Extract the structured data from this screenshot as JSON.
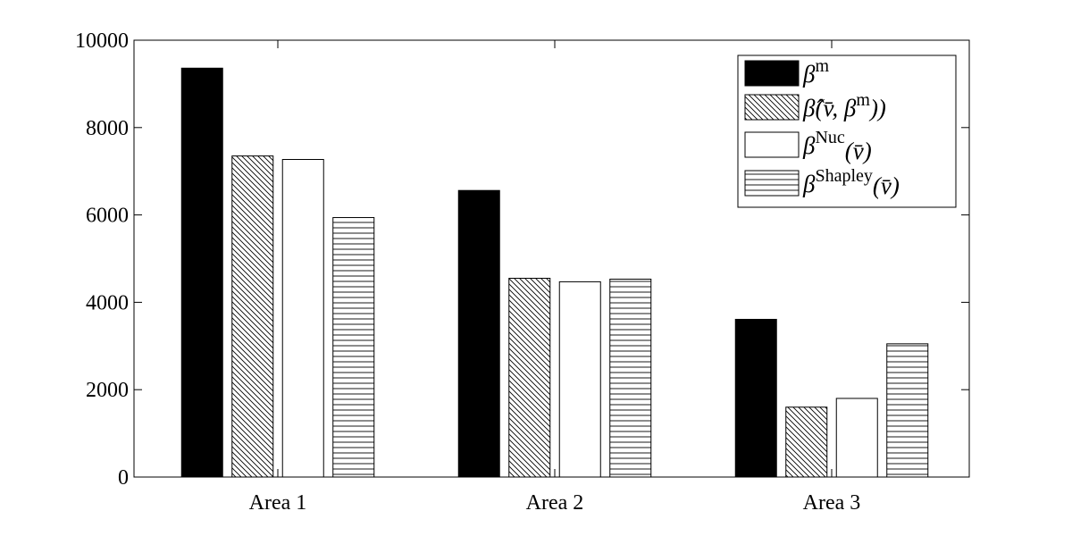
{
  "chart_data": {
    "type": "bar",
    "categories": [
      "Area 1",
      "Area 2",
      "Area 3"
    ],
    "series": [
      {
        "name": "βm",
        "pattern": "solid",
        "values": [
          9360,
          6560,
          3610
        ]
      },
      {
        "name": "β̂(v̄, βm))",
        "pattern": "diagonal",
        "values": [
          7350,
          4550,
          1600
        ]
      },
      {
        "name": "βNuc(v̄)",
        "pattern": "empty",
        "values": [
          7270,
          4470,
          1800
        ]
      },
      {
        "name": "βShapley(v̄)",
        "pattern": "horizontal",
        "values": [
          5940,
          4530,
          3050
        ]
      }
    ],
    "ylim": [
      0,
      10000
    ],
    "yticks": [
      "0",
      "2000",
      "4000",
      "6000",
      "8000",
      "10000"
    ],
    "ytick_values": [
      0,
      2000,
      4000,
      6000,
      8000,
      10000
    ],
    "legend_position": "top-right",
    "grid": false,
    "colors": {
      "bar_fill_solid": "#000000",
      "bar_stroke": "#000000",
      "background": "#ffffff"
    },
    "legend": {
      "entries": [
        {
          "base": "β",
          "sup": "m",
          "tail": ""
        },
        {
          "base": "β̂",
          "sup": "",
          "tail": "(v̄, β",
          "sup2": "m",
          "tail2": "))"
        },
        {
          "base": "β",
          "sup": "Nuc",
          "tail": "(v̄)"
        },
        {
          "base": "β",
          "sup": "Shapley",
          "tail": "(v̄)"
        }
      ]
    }
  }
}
